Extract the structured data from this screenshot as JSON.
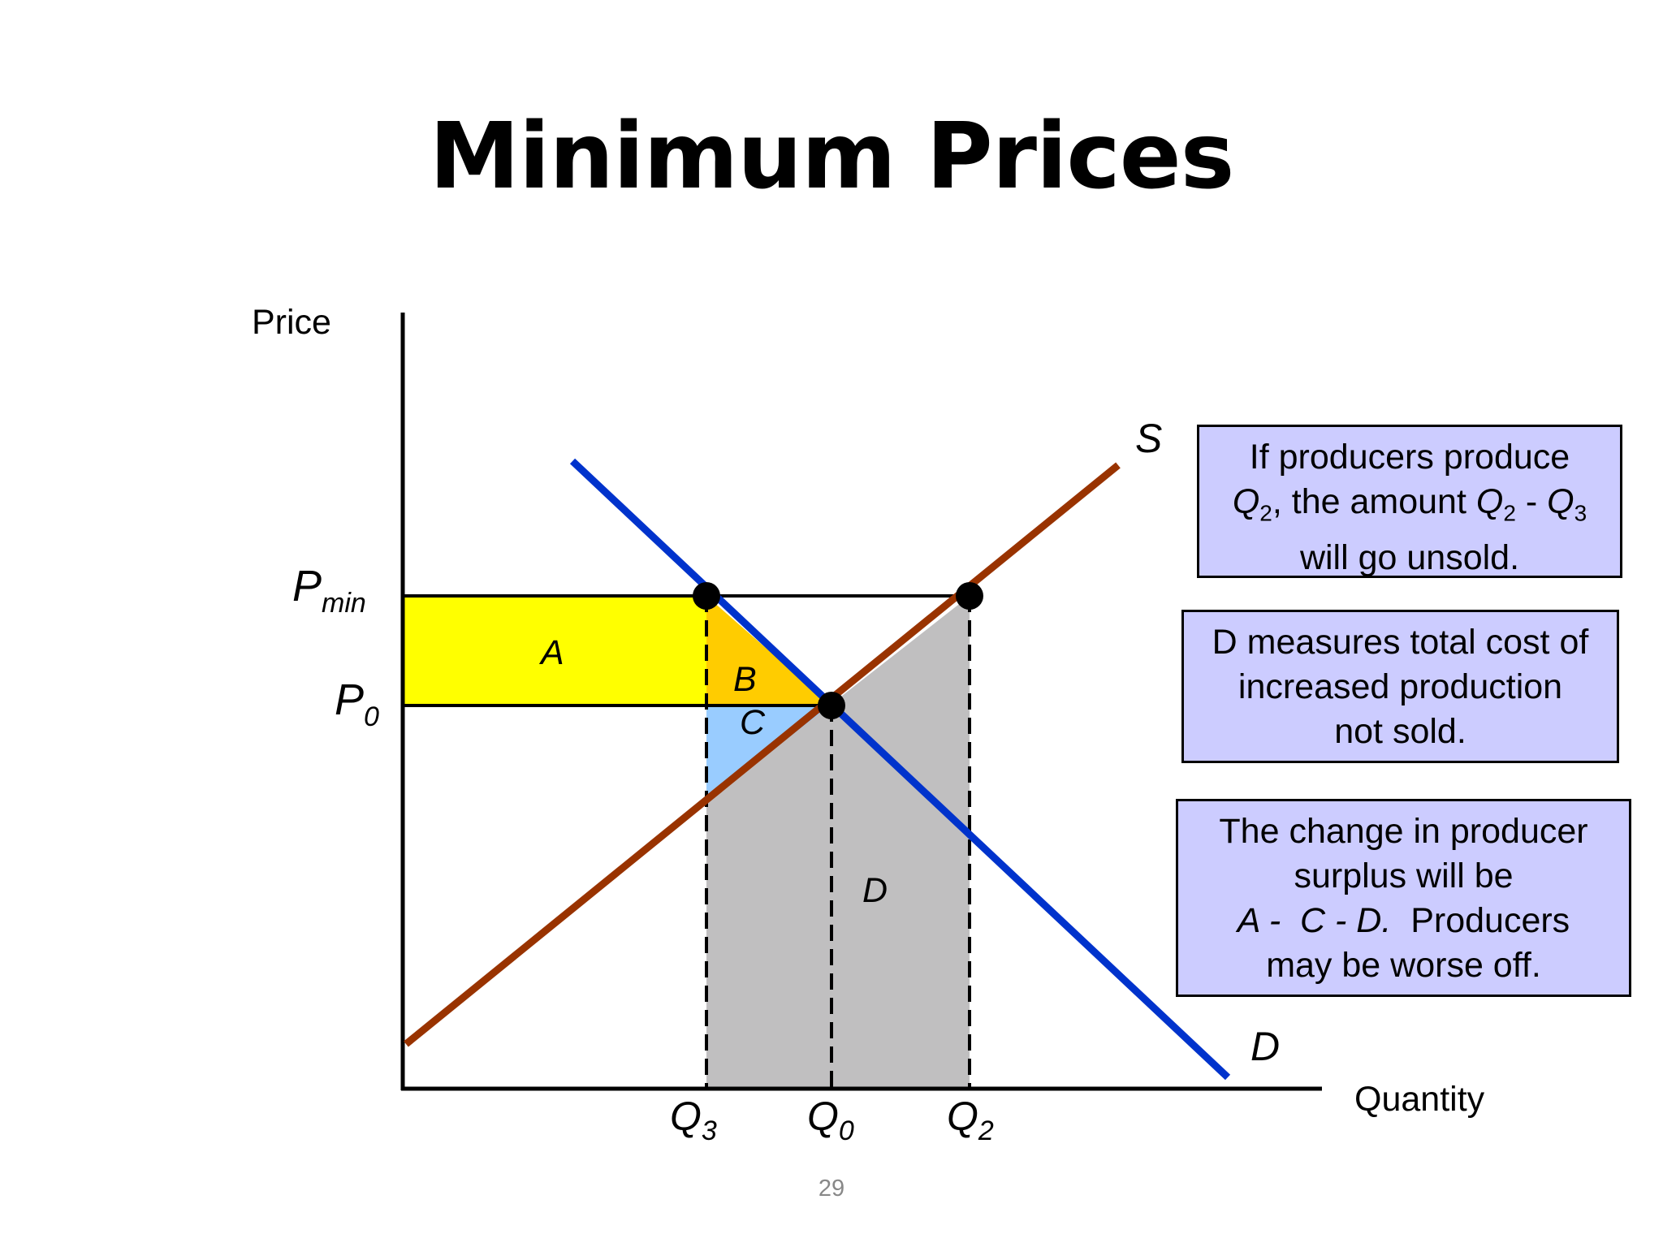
{
  "slide": {
    "title": "Minimum Prices",
    "page_number": "29"
  },
  "diagram": {
    "y_axis_label": "Price",
    "x_axis_label": "Quantity",
    "supply_label": "S",
    "demand_label": "D",
    "price_labels": {
      "p_min": {
        "base": "P",
        "sub": "min"
      },
      "p0": {
        "base": "P",
        "sub": "0"
      }
    },
    "quantity_labels": {
      "q3": {
        "base": "Q",
        "sub": "3"
      },
      "q0": {
        "base": "Q",
        "sub": "0"
      },
      "q2": {
        "base": "Q",
        "sub": "2"
      }
    },
    "area_labels": {
      "a": "A",
      "b": "B",
      "c": "C",
      "d": "D"
    },
    "colors": {
      "supply": "#993300",
      "demand": "#0033cc",
      "area_a": "#ffff00",
      "area_b": "#ffcc00",
      "area_c": "#99ccff",
      "area_d": "#c0bfc0",
      "note_fill": "#ccccff"
    }
  },
  "notes": {
    "unsold": {
      "line1": "If producers produce",
      "q2_base": "Q",
      "q2_sub": "2",
      "mid": ", the amount ",
      "q2b_base": "Q",
      "q2b_sub": "2",
      "minus": " - ",
      "q3_base": "Q",
      "q3_sub": "3",
      "line3": "will go unsold."
    },
    "cost": {
      "line1": "D measures total cost of",
      "line2": "increased production",
      "line3": "not sold."
    },
    "surplus": {
      "line1": "The change in producer",
      "line2": "surplus will be",
      "formula": "A -  C - D.",
      "line3_tail": "  Producers",
      "line4": "may be worse off."
    }
  }
}
